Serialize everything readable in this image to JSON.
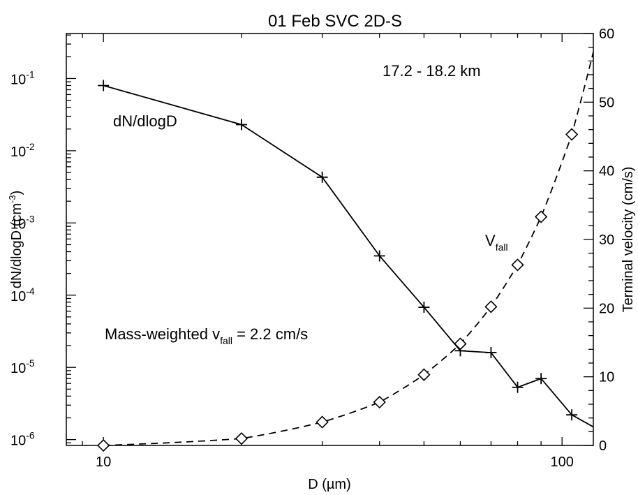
{
  "chart_data": {
    "type": "line",
    "title": "01 Feb SVC   2D-S",
    "xlabel": "D (µm)",
    "ylabel_left": "dN/dlogD (cm",
    "ylabel_left_sup": "-3",
    "ylabel_left_close": ")",
    "ylabel_right": "Terminal velocity (cm/s)",
    "x_scale": "log",
    "xlim": [
      8.3,
      117
    ],
    "x_ticks": [
      10,
      100
    ],
    "y_left_scale": "log",
    "y_left_lim": [
      8.3e-07,
      0.42
    ],
    "y_left_ticks": [
      {
        "base": "10",
        "exp": "-6",
        "value": 1e-06
      },
      {
        "base": "10",
        "exp": "-5",
        "value": 1e-05
      },
      {
        "base": "10",
        "exp": "-4",
        "value": 0.0001
      },
      {
        "base": "10",
        "exp": "-3",
        "value": 0.001
      },
      {
        "base": "10",
        "exp": "-2",
        "value": 0.01
      },
      {
        "base": "10",
        "exp": "-1",
        "value": 0.1
      }
    ],
    "y_right_lim": [
      0,
      60
    ],
    "y_right_ticks": [
      0,
      10,
      20,
      30,
      40,
      50,
      60
    ],
    "grid": false,
    "altitude_label": "17.2 - 18.2 km",
    "mass_weighted_text": "Mass-weighted v",
    "mass_weighted_sub": "fall",
    "mass_weighted_value": " = 2.2 cm/s",
    "series": [
      {
        "name": "dN/dlogD",
        "axis": "left",
        "marker": "plus",
        "line": "solid",
        "x": [
          10,
          20,
          30,
          40,
          50,
          60,
          70,
          80,
          90,
          105,
          117
        ],
        "y": [
          0.08,
          0.023,
          0.0043,
          0.00035,
          6.8e-05,
          1.7e-05,
          1.6e-05,
          5.3e-06,
          7e-06,
          2.2e-06,
          1.5e-06
        ],
        "marked": [
          true,
          true,
          true,
          true,
          true,
          true,
          true,
          true,
          true,
          true,
          false
        ]
      },
      {
        "name": "V",
        "name_sub": "fall",
        "axis": "right",
        "marker": "diamond",
        "line": "dashed",
        "x": [
          10,
          20,
          30,
          40,
          50,
          60,
          70,
          80,
          90,
          105
        ],
        "y": [
          0,
          1.0,
          3.4,
          6.3,
          10.3,
          14.8,
          20.2,
          26.3,
          33.3,
          45.3
        ]
      }
    ]
  }
}
